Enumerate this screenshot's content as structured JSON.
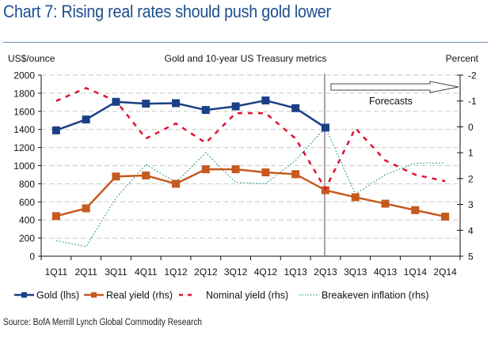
{
  "title": "Chart 7: Rising real rates should push gold lower",
  "source": "Source: BofA Merrill Lynch Global Commodity Research",
  "chart_data": {
    "type": "line",
    "title": "Gold and 10-year US Treasury metrics",
    "ylabel_left": "US$/ounce",
    "ylabel_right": "Percent",
    "ylim_left": [
      0,
      2000
    ],
    "yticks_left": [
      0,
      200,
      400,
      600,
      800,
      1000,
      1200,
      1400,
      1600,
      1800,
      2000
    ],
    "ylim_right": [
      5,
      -2
    ],
    "yticks_right": [
      5,
      4,
      3,
      2,
      1,
      0,
      -1,
      -2
    ],
    "right_axis_inverted": true,
    "grid": true,
    "annotation": "Forecasts",
    "forecast_start": "2Q13",
    "categories": [
      "1Q11",
      "2Q11",
      "3Q11",
      "4Q11",
      "1Q12",
      "2Q12",
      "3Q12",
      "4Q12",
      "1Q13",
      "2Q13",
      "3Q13",
      "4Q13",
      "1Q14",
      "2Q14"
    ],
    "legend_position": "bottom",
    "series": [
      {
        "name": "Gold (lhs)",
        "axis": "left",
        "style": "solid-square",
        "color": "#1b3f87",
        "values": [
          1390,
          1510,
          1705,
          1685,
          1690,
          1615,
          1655,
          1720,
          1635,
          1420,
          null,
          null,
          null,
          null
        ]
      },
      {
        "name": "Real yield (rhs)",
        "axis": "right",
        "style": "solid-square",
        "color": "#c65a1e",
        "values": [
          3.45,
          3.15,
          1.92,
          1.88,
          2.2,
          1.64,
          1.64,
          1.76,
          1.83,
          2.45,
          2.72,
          2.97,
          3.22,
          3.47
        ]
      },
      {
        "name": "Nominal yield (rhs)",
        "axis": "right",
        "style": "dashed",
        "color": "#e0102f",
        "values": [
          -1.0,
          -1.5,
          -1.0,
          0.45,
          -0.13,
          0.62,
          -0.53,
          -0.53,
          0.45,
          2.4,
          0.05,
          1.3,
          1.85,
          2.1
        ]
      },
      {
        "name": "Breakeven inflation (rhs)",
        "axis": "right",
        "style": "dotted",
        "color": "#2e9a7e",
        "values": [
          4.4,
          4.63,
          2.75,
          1.45,
          2.15,
          1.0,
          2.15,
          2.2,
          1.3,
          0.03,
          2.6,
          1.85,
          1.4,
          1.4
        ]
      }
    ]
  }
}
